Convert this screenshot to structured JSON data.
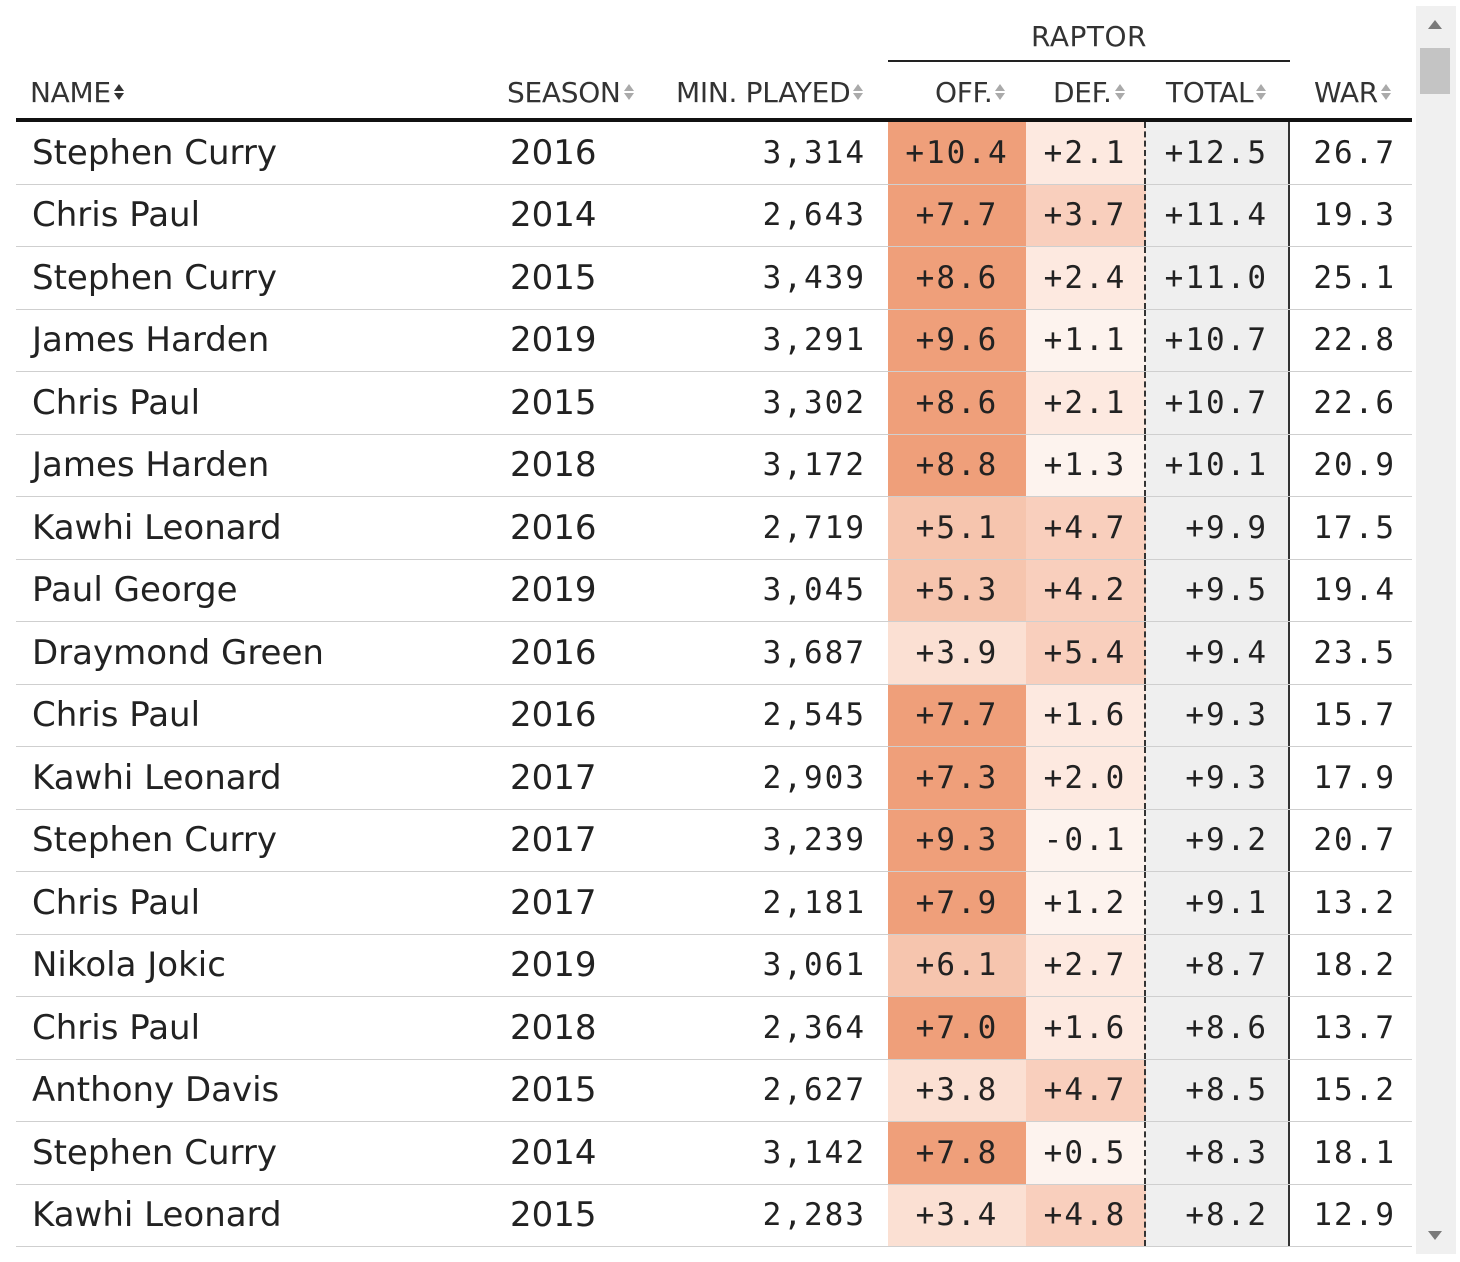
{
  "group_header": "RAPTOR",
  "columns": {
    "name": "NAME",
    "season": "SEASON",
    "min": "MIN. PLAYED",
    "off": "OFF.",
    "def": "DEF.",
    "total": "TOTAL",
    "war": "WAR"
  },
  "colors": {
    "off_strong": "#ef9f7a",
    "off_mid": "#f6c5ae",
    "off_light": "#fbe0d3",
    "def_mid": "#f9cfbd",
    "def_light": "#fde9e0",
    "total_bg": "#efefef"
  },
  "rows": [
    {
      "name": "Stephen Curry",
      "season": "2016",
      "min": "3,314",
      "off": "+10.4",
      "def": "+2.1",
      "total": "+12.5",
      "war": "26.7"
    },
    {
      "name": "Chris Paul",
      "season": "2014",
      "min": "2,643",
      "off": "+7.7",
      "def": "+3.7",
      "total": "+11.4",
      "war": "19.3"
    },
    {
      "name": "Stephen Curry",
      "season": "2015",
      "min": "3,439",
      "off": "+8.6",
      "def": "+2.4",
      "total": "+11.0",
      "war": "25.1"
    },
    {
      "name": "James Harden",
      "season": "2019",
      "min": "3,291",
      "off": "+9.6",
      "def": "+1.1",
      "total": "+10.7",
      "war": "22.8"
    },
    {
      "name": "Chris Paul",
      "season": "2015",
      "min": "3,302",
      "off": "+8.6",
      "def": "+2.1",
      "total": "+10.7",
      "war": "22.6"
    },
    {
      "name": "James Harden",
      "season": "2018",
      "min": "3,172",
      "off": "+8.8",
      "def": "+1.3",
      "total": "+10.1",
      "war": "20.9"
    },
    {
      "name": "Kawhi Leonard",
      "season": "2016",
      "min": "2,719",
      "off": "+5.1",
      "def": "+4.7",
      "total": "+9.9",
      "war": "17.5"
    },
    {
      "name": "Paul George",
      "season": "2019",
      "min": "3,045",
      "off": "+5.3",
      "def": "+4.2",
      "total": "+9.5",
      "war": "19.4"
    },
    {
      "name": "Draymond Green",
      "season": "2016",
      "min": "3,687",
      "off": "+3.9",
      "def": "+5.4",
      "total": "+9.4",
      "war": "23.5"
    },
    {
      "name": "Chris Paul",
      "season": "2016",
      "min": "2,545",
      "off": "+7.7",
      "def": "+1.6",
      "total": "+9.3",
      "war": "15.7"
    },
    {
      "name": "Kawhi Leonard",
      "season": "2017",
      "min": "2,903",
      "off": "+7.3",
      "def": "+2.0",
      "total": "+9.3",
      "war": "17.9"
    },
    {
      "name": "Stephen Curry",
      "season": "2017",
      "min": "3,239",
      "off": "+9.3",
      "def": "-0.1",
      "total": "+9.2",
      "war": "20.7"
    },
    {
      "name": "Chris Paul",
      "season": "2017",
      "min": "2,181",
      "off": "+7.9",
      "def": "+1.2",
      "total": "+9.1",
      "war": "13.2"
    },
    {
      "name": "Nikola Jokic",
      "season": "2019",
      "min": "3,061",
      "off": "+6.1",
      "def": "+2.7",
      "total": "+8.7",
      "war": "18.2"
    },
    {
      "name": "Chris Paul",
      "season": "2018",
      "min": "2,364",
      "off": "+7.0",
      "def": "+1.6",
      "total": "+8.6",
      "war": "13.7"
    },
    {
      "name": "Anthony Davis",
      "season": "2015",
      "min": "2,627",
      "off": "+3.8",
      "def": "+4.7",
      "total": "+8.5",
      "war": "15.2"
    },
    {
      "name": "Stephen Curry",
      "season": "2014",
      "min": "3,142",
      "off": "+7.8",
      "def": "+0.5",
      "total": "+8.3",
      "war": "18.1"
    },
    {
      "name": "Kawhi Leonard",
      "season": "2015",
      "min": "2,283",
      "off": "+3.4",
      "def": "+4.8",
      "total": "+8.2",
      "war": "12.9"
    }
  ]
}
